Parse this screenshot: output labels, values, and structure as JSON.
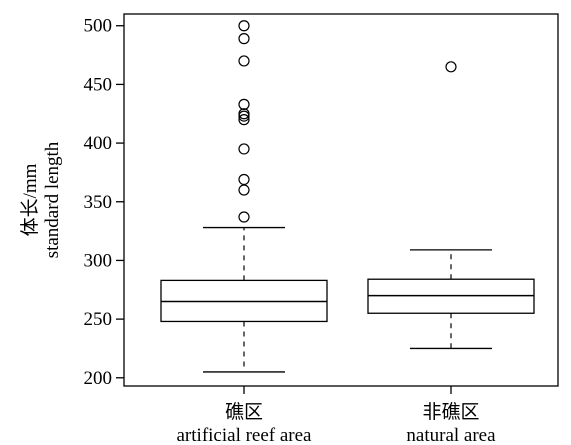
{
  "chart_data": {
    "type": "boxplot",
    "ylabel_lines": [
      "体长/mm",
      "standard length"
    ],
    "ylim": [
      193,
      510
    ],
    "yticks": [
      200,
      250,
      300,
      350,
      400,
      450,
      500
    ],
    "categories": [
      {
        "name_cn": "礁区",
        "name_en": "artificial reef area"
      },
      {
        "name_cn": "非礁区",
        "name_en": "natural area"
      }
    ],
    "boxes": [
      {
        "whisker_low": 205,
        "q1": 248,
        "median": 265,
        "q3": 283,
        "whisker_high": 328,
        "outliers": [
          337,
          360,
          369,
          395,
          420,
          423,
          425,
          433,
          470,
          489,
          500
        ]
      },
      {
        "whisker_low": 225,
        "q1": 255,
        "median": 270,
        "q3": 284,
        "whisker_high": 309,
        "outliers": [
          465
        ]
      }
    ],
    "grid": false
  }
}
